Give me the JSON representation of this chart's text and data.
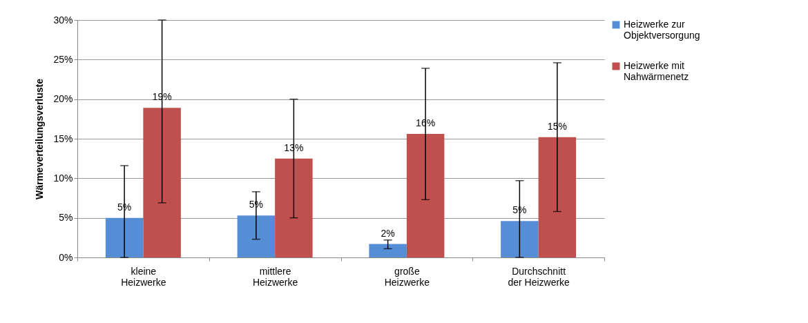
{
  "chart_data": {
    "type": "bar",
    "ylabel": "Wärmeverteilungsverluste",
    "categories": [
      "kleine\nHeizwerke",
      "mittlere\nHeizwerke",
      "große\nHeizwerke",
      "Durchschnitt\nder Heizwerke"
    ],
    "series": [
      {
        "name": "Heizwerke zur\nObjektversorgung",
        "color": "#558ed5",
        "values": [
          5.0,
          5.3,
          1.7,
          4.6
        ],
        "errors": [
          [
            0,
            11.6
          ],
          [
            2.3,
            8.3
          ],
          [
            1.1,
            2.2
          ],
          [
            0,
            9.7
          ]
        ],
        "value_labels": [
          "5%",
          "5%",
          "2%",
          "5%"
        ]
      },
      {
        "name": "Heizwerke mit\nNahwärmenetz",
        "color": "#c0504d",
        "values": [
          18.9,
          12.5,
          15.6,
          15.2
        ],
        "errors": [
          [
            6.9,
            30
          ],
          [
            5.0,
            20.0
          ],
          [
            7.3,
            23.9
          ],
          [
            5.8,
            24.6
          ]
        ],
        "value_labels": [
          "19%",
          "13%",
          "16%",
          "15%"
        ]
      }
    ],
    "ylim": [
      0,
      30
    ],
    "yticks": [
      {
        "value": 0,
        "label": "0%"
      },
      {
        "value": 5,
        "label": "5%"
      },
      {
        "value": 10,
        "label": "10%"
      },
      {
        "value": 15,
        "label": "15%"
      },
      {
        "value": 20,
        "label": "20%"
      },
      {
        "value": 25,
        "label": "25%"
      },
      {
        "value": 30,
        "label": "30%"
      }
    ],
    "grid": "y",
    "legend": "right"
  }
}
